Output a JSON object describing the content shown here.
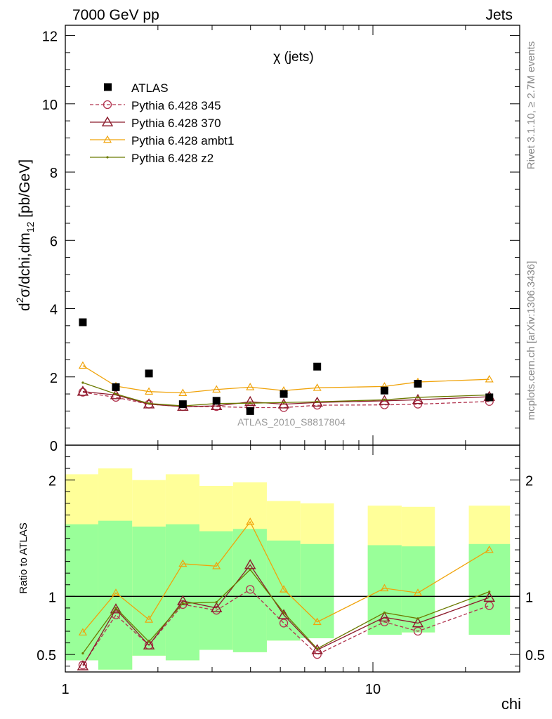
{
  "header": {
    "left": "7000 GeV pp",
    "right": "Jets"
  },
  "side_labels": {
    "rivet": "Rivet 3.1.10, ≥ 2.7M events",
    "mcplots": "mcplots.cern.ch [arXiv:1306.3436]"
  },
  "chart_data": {
    "type": "scatter",
    "title": "χ (jets)",
    "watermark": "ATLAS_2010_S8817804",
    "xlabel": "chi",
    "ylabel_parts": {
      "d": "d",
      "sup": "2",
      "mid": "σ/dchi,dm",
      "sub": "12",
      "unit": " [pb/GeV]"
    },
    "ratio_ylabel": "Ratio to ATLAS",
    "x_scale": "log",
    "xlim": [
      1,
      30
    ],
    "ylim": [
      0,
      12.3
    ],
    "ratio_ylim": [
      0.35,
      2.3
    ],
    "x_ticks": [
      {
        "v": 1,
        "label": "1"
      },
      {
        "v": 10,
        "label": "10"
      }
    ],
    "y_ticks": [
      0,
      2,
      4,
      6,
      8,
      10,
      12
    ],
    "ratio_ticks": [
      {
        "v": 0.5,
        "label": "0.5"
      },
      {
        "v": 1,
        "label": "1"
      },
      {
        "v": 2,
        "label": "2"
      }
    ],
    "legend_position": "top-left",
    "bin_edges": [
      1,
      1.28,
      1.65,
      2.12,
      2.73,
      3.51,
      4.52,
      5.81,
      7.47,
      9.62,
      12.4,
      15.9,
      20.5,
      27.9
    ],
    "x": [
      1.14,
      1.46,
      1.87,
      2.41,
      3.1,
      3.99,
      5.13,
      6.59,
      8.48,
      10.9,
      14.0,
      18.1,
      23.9
    ],
    "atlas": {
      "name": "ATLAS",
      "values": [
        3.6,
        1.7,
        2.1,
        1.2,
        1.3,
        1.0,
        1.5,
        2.3,
        1.6,
        1.8,
        1.4
      ],
      "x_index": [
        0,
        1,
        2,
        3,
        4,
        5,
        6,
        7,
        9,
        10,
        12
      ]
    },
    "ratio_bands": {
      "yellow": [
        [
          0.45,
          2.05
        ],
        [
          0.37,
          2.1
        ],
        [
          0.49,
          2.0
        ],
        [
          0.45,
          2.05
        ],
        [
          0.54,
          1.95
        ],
        [
          0.52,
          1.98
        ],
        [
          0.62,
          1.82
        ],
        [
          0.64,
          1.8
        ],
        [
          0.67,
          1.78
        ],
        [
          0.69,
          1.77
        ],
        [
          0.67,
          1.78
        ]
      ],
      "green": [
        [
          0.45,
          1.62
        ],
        [
          0.37,
          1.65
        ],
        [
          0.49,
          1.6
        ],
        [
          0.45,
          1.62
        ],
        [
          0.54,
          1.56
        ],
        [
          0.52,
          1.58
        ],
        [
          0.62,
          1.48
        ],
        [
          0.64,
          1.45
        ],
        [
          0.67,
          1.44
        ],
        [
          0.69,
          1.43
        ],
        [
          0.67,
          1.45
        ]
      ]
    },
    "series": [
      {
        "name": "Pythia 6.428 345",
        "color": "#b2344f",
        "dash": "5,3",
        "marker": "circle-open",
        "values": [
          1.55,
          1.4,
          1.2,
          1.13,
          1.13,
          1.1,
          1.1,
          1.17,
          1.18,
          1.2,
          1.28
        ],
        "ratio": [
          0.41,
          0.84,
          0.58,
          0.93,
          0.88,
          1.06,
          0.77,
          0.5,
          0.78,
          0.7,
          0.92
        ]
      },
      {
        "name": "Pythia 6.428 370",
        "color": "#8b1a2b",
        "dash": "",
        "marker": "triangle-open",
        "values": [
          1.57,
          1.47,
          1.2,
          1.13,
          1.15,
          1.27,
          1.2,
          1.25,
          1.3,
          1.33,
          1.42
        ],
        "ratio": [
          0.4,
          0.89,
          0.58,
          0.96,
          0.9,
          1.27,
          0.84,
          0.54,
          0.82,
          0.77,
          0.99
        ]
      },
      {
        "name": "Pythia 6.428 ambt1",
        "color": "#f0a30a",
        "dash": "",
        "marker": "triangle-open-small",
        "values": [
          2.33,
          1.73,
          1.57,
          1.53,
          1.63,
          1.7,
          1.6,
          1.68,
          1.72,
          1.85,
          1.93
        ],
        "ratio": [
          0.69,
          1.03,
          0.8,
          1.28,
          1.26,
          1.64,
          1.06,
          0.78,
          1.07,
          1.03,
          1.4
        ]
      },
      {
        "name": "Pythia 6.428 z2",
        "color": "#6b7a00",
        "dash": "",
        "marker": "dot",
        "values": [
          1.83,
          1.5,
          1.22,
          1.15,
          1.22,
          1.23,
          1.25,
          1.27,
          1.33,
          1.4,
          1.47
        ],
        "ratio": [
          0.51,
          0.9,
          0.61,
          0.94,
          0.95,
          1.23,
          0.86,
          0.55,
          0.86,
          0.81,
          1.04
        ]
      }
    ]
  }
}
